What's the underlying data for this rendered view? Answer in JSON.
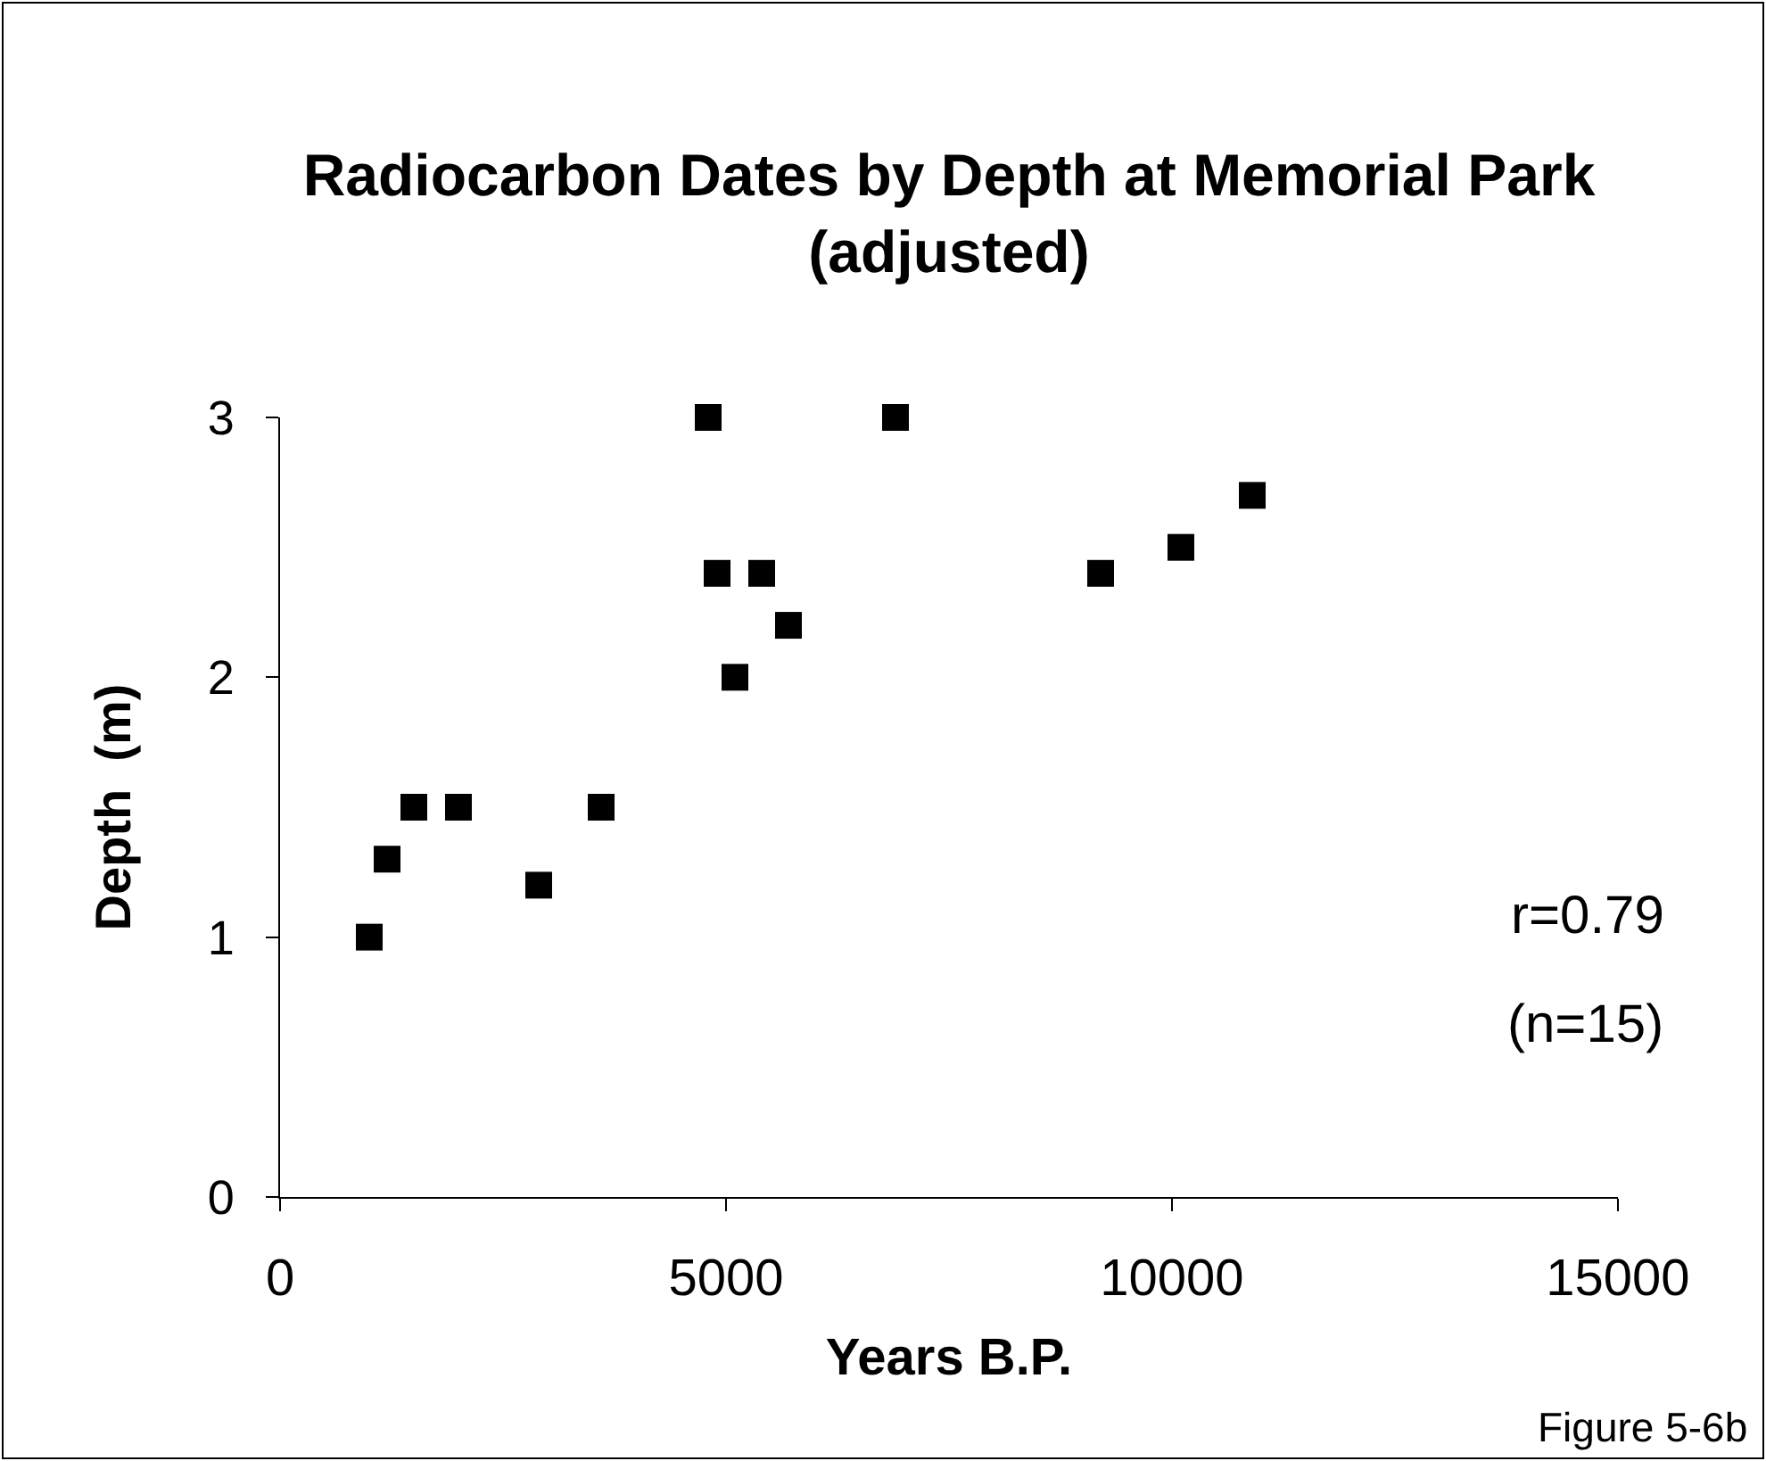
{
  "chart_data": {
    "type": "scatter",
    "title": "Radiocarbon Dates by Depth at Memorial Park\n(adjusted)",
    "xlabel": "Years B.P.",
    "ylabel": "Depth  (m)",
    "x": [
      1000,
      1200,
      1500,
      2000,
      2900,
      3600,
      4800,
      4900,
      5100,
      5400,
      5700,
      6900,
      9200,
      10100,
      10900
    ],
    "values": [
      1.0,
      1.3,
      1.5,
      1.5,
      1.2,
      1.5,
      3.0,
      2.4,
      2.0,
      2.4,
      2.2,
      3.0,
      2.4,
      2.5,
      2.7
    ],
    "color": "#000000",
    "marker": "square",
    "xlim": [
      0,
      15000
    ],
    "xticks": [
      0,
      5000,
      10000,
      15000
    ],
    "ylim": [
      0,
      3
    ],
    "yticks": [
      0,
      1,
      2,
      3
    ],
    "annotations": [
      "r=0.79",
      "(n=15)",
      "Figure 5-6b"
    ]
  }
}
